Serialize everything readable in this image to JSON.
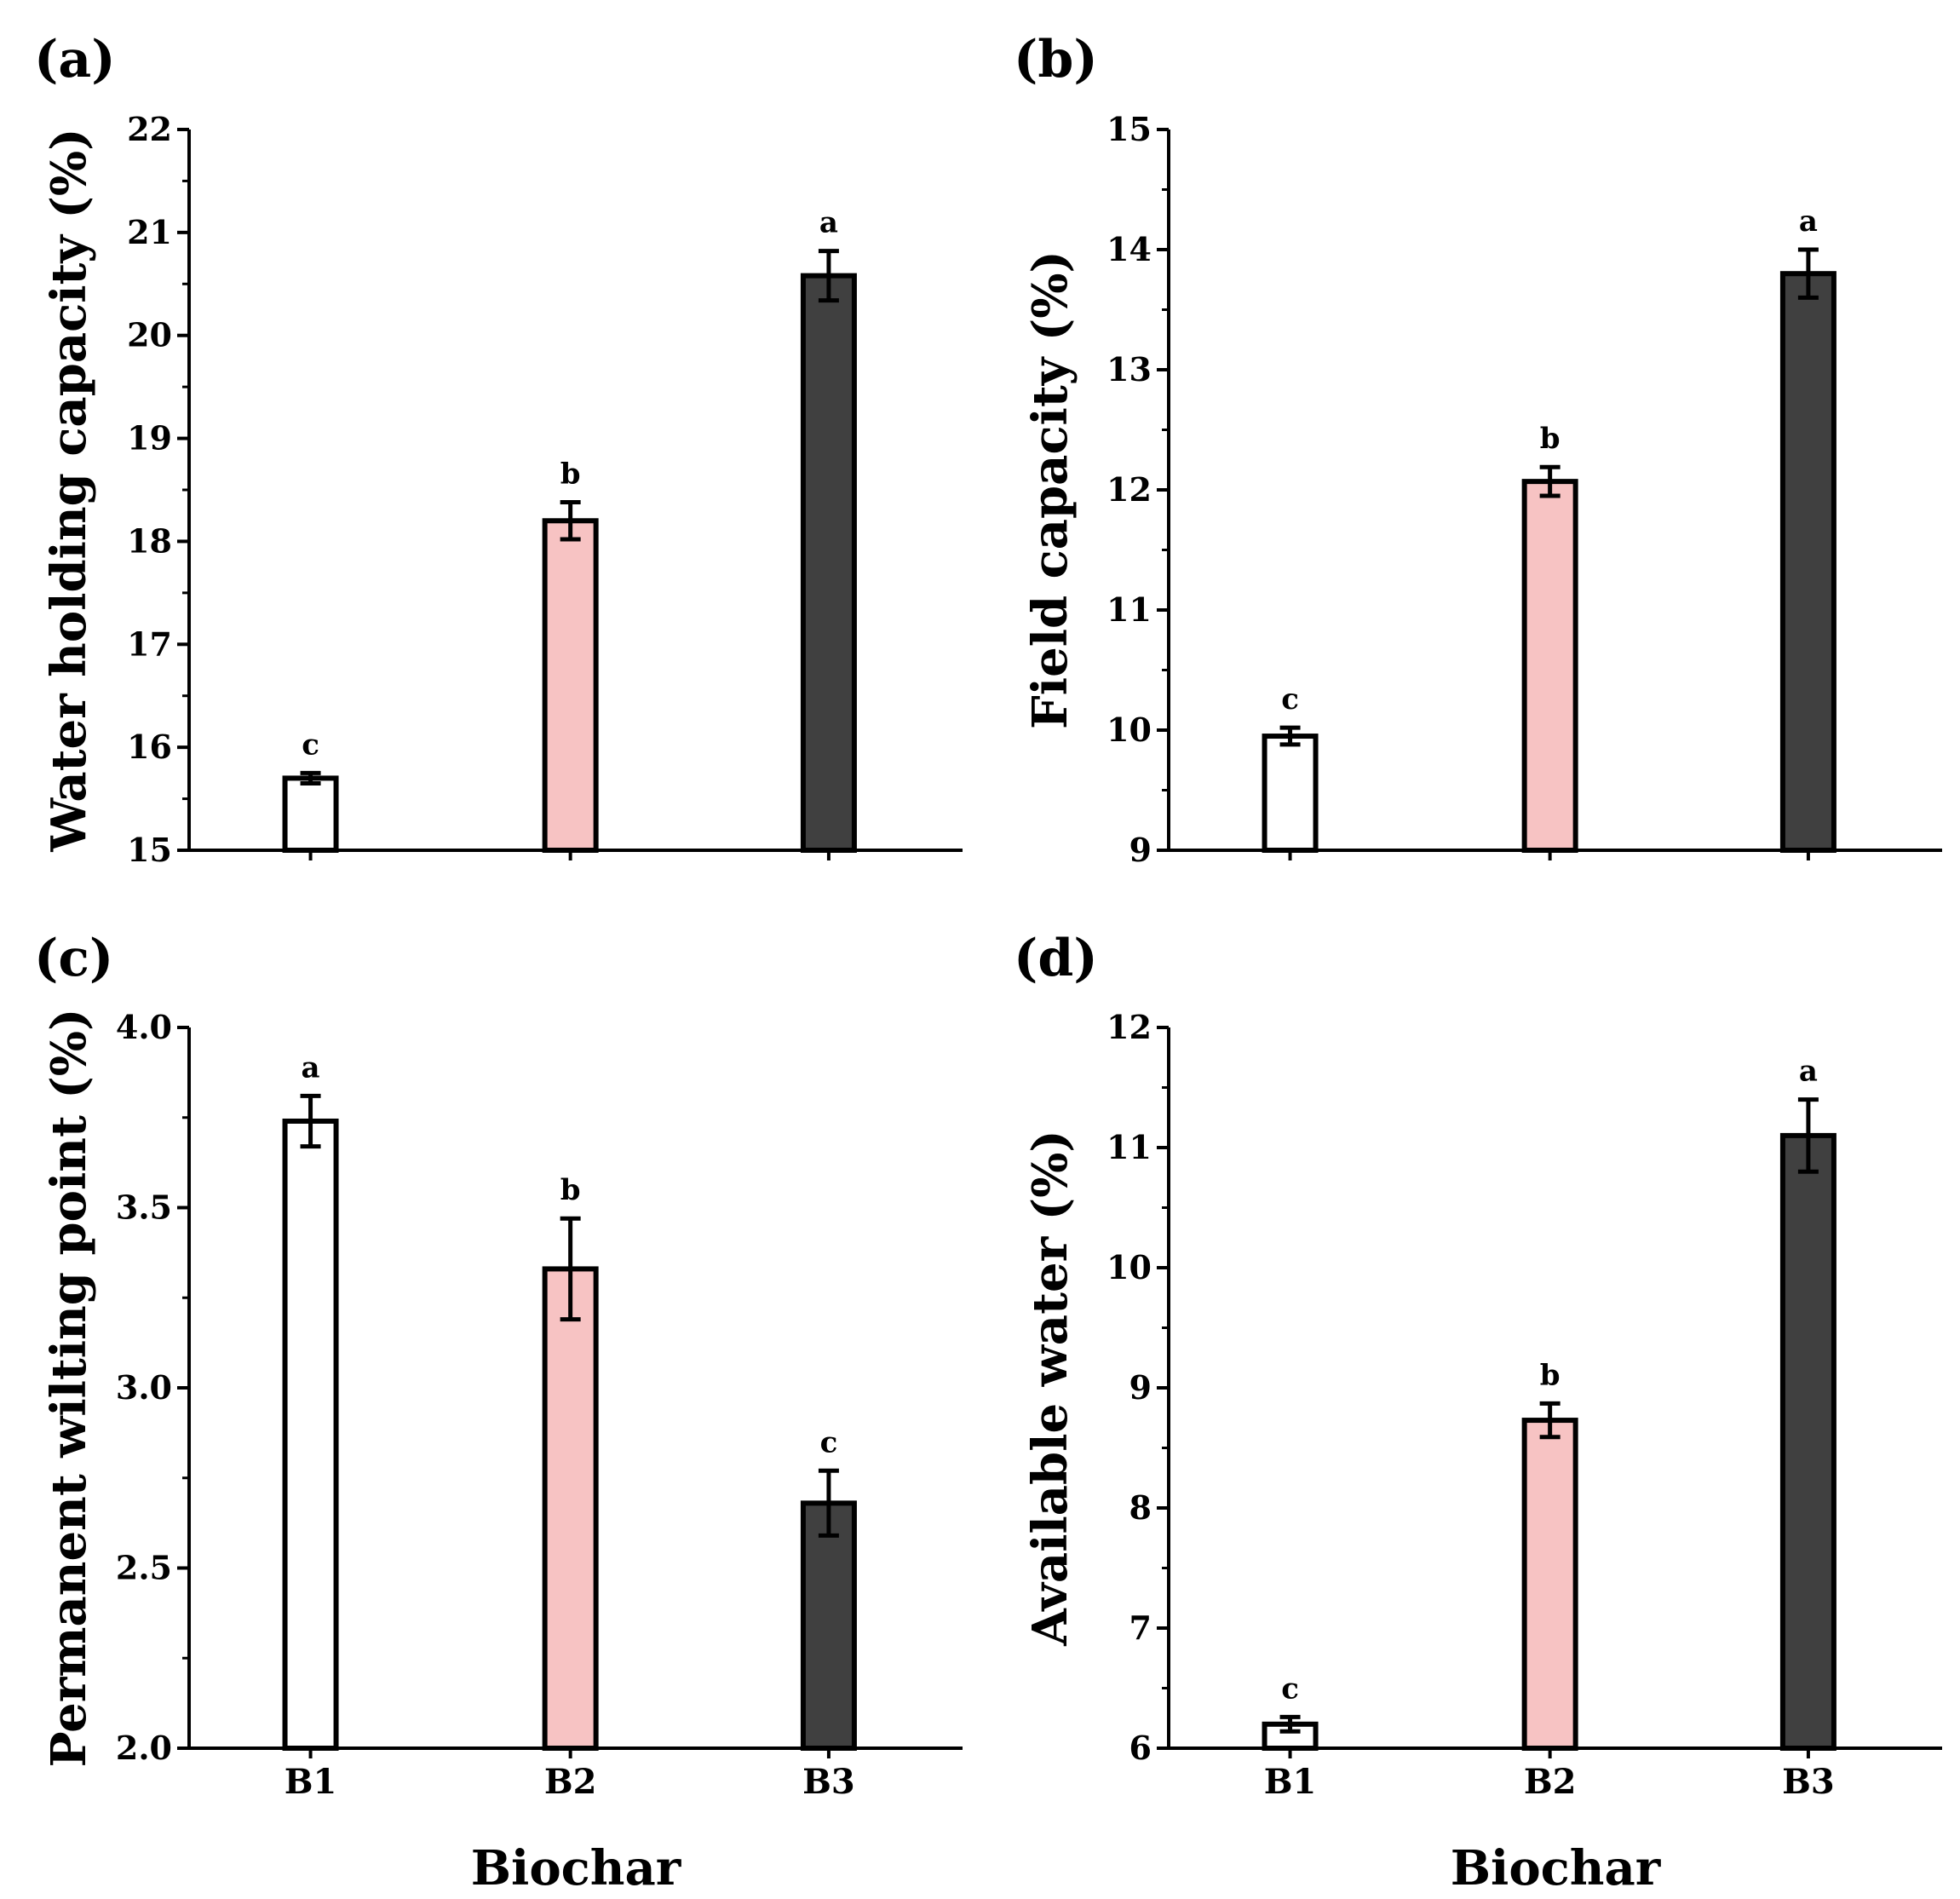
{
  "colors": {
    "B1": "#ffffff",
    "B2": "#f7c3c3",
    "B3": "#404040",
    "axis": "#000000"
  },
  "chart_data": [
    {
      "type": "bar",
      "panel_label": "(a)",
      "ylabel": "Water holding capacity (%)",
      "xlabel": "",
      "categories": [
        "B1",
        "B2",
        "B3"
      ],
      "values": [
        15.7,
        18.2,
        20.58
      ],
      "errors": [
        0.05,
        0.18,
        0.24
      ],
      "significance": [
        "c",
        "b",
        "a"
      ],
      "ylim": [
        15,
        22
      ],
      "yticks": [
        "15",
        "16",
        "17",
        "18",
        "19",
        "20",
        "21",
        "22"
      ],
      "show_category_labels": false
    },
    {
      "type": "bar",
      "panel_label": "(b)",
      "ylabel": "Field capacity (%)",
      "xlabel": "",
      "categories": [
        "B1",
        "B2",
        "B3"
      ],
      "values": [
        9.95,
        12.07,
        13.8
      ],
      "errors": [
        0.07,
        0.12,
        0.2
      ],
      "significance": [
        "c",
        "b",
        "a"
      ],
      "ylim": [
        9,
        15
      ],
      "yticks": [
        "9",
        "10",
        "11",
        "12",
        "13",
        "14",
        "15"
      ],
      "show_category_labels": false
    },
    {
      "type": "bar",
      "panel_label": "(c)",
      "ylabel": "Permanent wilting point (%)",
      "xlabel": "Biochar",
      "categories": [
        "B1",
        "B2",
        "B3"
      ],
      "values": [
        3.74,
        3.33,
        2.68
      ],
      "errors": [
        0.07,
        0.14,
        0.09
      ],
      "significance": [
        "a",
        "b",
        "c"
      ],
      "ylim": [
        2.0,
        4.0
      ],
      "yticks": [
        "2.0",
        "2.5",
        "3.0",
        "3.5",
        "4.0"
      ],
      "show_category_labels": true
    },
    {
      "type": "bar",
      "panel_label": "(d)",
      "ylabel": "Available water (%)",
      "xlabel": "Biochar",
      "categories": [
        "B1",
        "B2",
        "B3"
      ],
      "values": [
        6.2,
        8.73,
        11.1
      ],
      "errors": [
        0.06,
        0.14,
        0.3
      ],
      "significance": [
        "c",
        "b",
        "a"
      ],
      "ylim": [
        6,
        12
      ],
      "yticks": [
        "6",
        "7",
        "8",
        "9",
        "10",
        "11",
        "12"
      ],
      "show_category_labels": true
    }
  ]
}
